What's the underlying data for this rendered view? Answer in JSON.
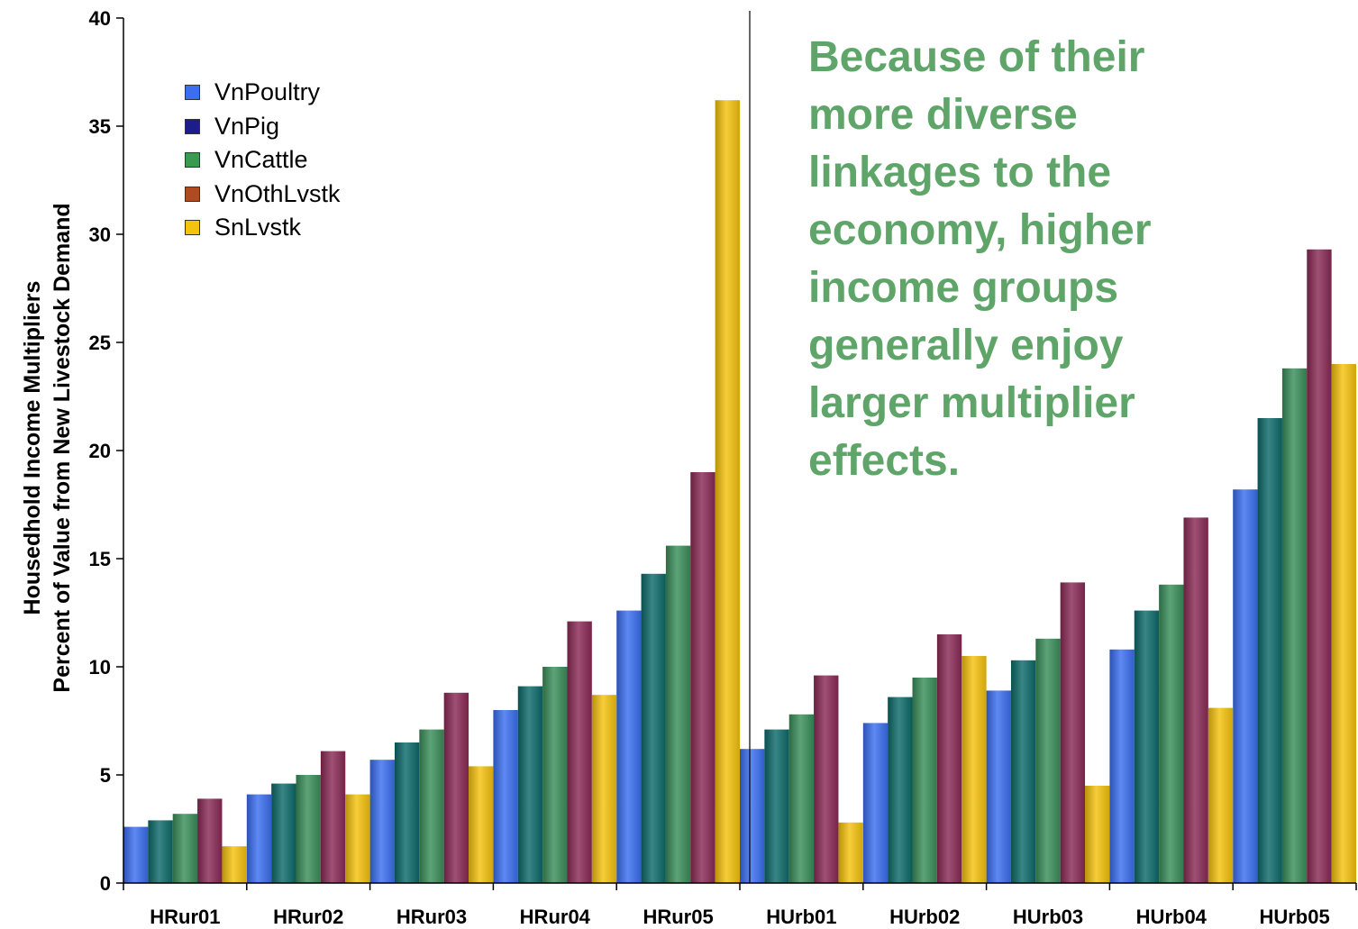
{
  "chart_data": {
    "type": "bar",
    "ylabel_lines": [
      "Housedhold Income Multipliers",
      "Percent of Value from New Livestock Demand"
    ],
    "xlabel": "",
    "ylim": [
      0,
      40
    ],
    "yticks": [
      0,
      5,
      10,
      15,
      20,
      25,
      30,
      35,
      40
    ],
    "grid": false,
    "legend_position": "top-left",
    "categories": [
      "HRur01",
      "HRur02",
      "HRur03",
      "HRur04",
      "HRur05",
      "HUrb01",
      "HUrb02",
      "HUrb03",
      "HUrb04",
      "HUrb05"
    ],
    "series": [
      {
        "name": "VnPoultry",
        "color": "#3b6ff0",
        "values": [
          2.6,
          4.1,
          5.7,
          8.0,
          12.6,
          6.2,
          7.4,
          8.9,
          10.8,
          18.2
        ]
      },
      {
        "name": "VnPig",
        "color": "#0d6a6a",
        "values": [
          2.9,
          4.6,
          6.5,
          9.1,
          14.3,
          7.1,
          8.6,
          10.3,
          12.6,
          21.5
        ]
      },
      {
        "name": "VnCattle",
        "color": "#3a8f5a",
        "values": [
          3.2,
          5.0,
          7.1,
          10.0,
          15.6,
          7.8,
          9.5,
          11.3,
          13.8,
          23.8
        ]
      },
      {
        "name": "VnOthLvstk",
        "color": "#8a2a55",
        "values": [
          3.9,
          6.1,
          8.8,
          12.1,
          19.0,
          9.6,
          11.5,
          13.9,
          16.9,
          29.3
        ]
      },
      {
        "name": "SnLvstk",
        "color": "#f5c20e",
        "values": [
          1.7,
          4.1,
          5.4,
          8.7,
          36.2,
          2.8,
          10.5,
          4.5,
          8.1,
          24.0
        ]
      }
    ],
    "legend_colors": [
      "#3b6ff0",
      "#1c1c8a",
      "#3a9a4f",
      "#b04a20",
      "#f5c20e"
    ],
    "annotation": "Because of their\nmore diverse\nlinkages to the\neconomy, higher\nincome groups\ngenerally enjoy\nlarger multiplier\neffects.",
    "annotation_color": "#5fa569"
  }
}
